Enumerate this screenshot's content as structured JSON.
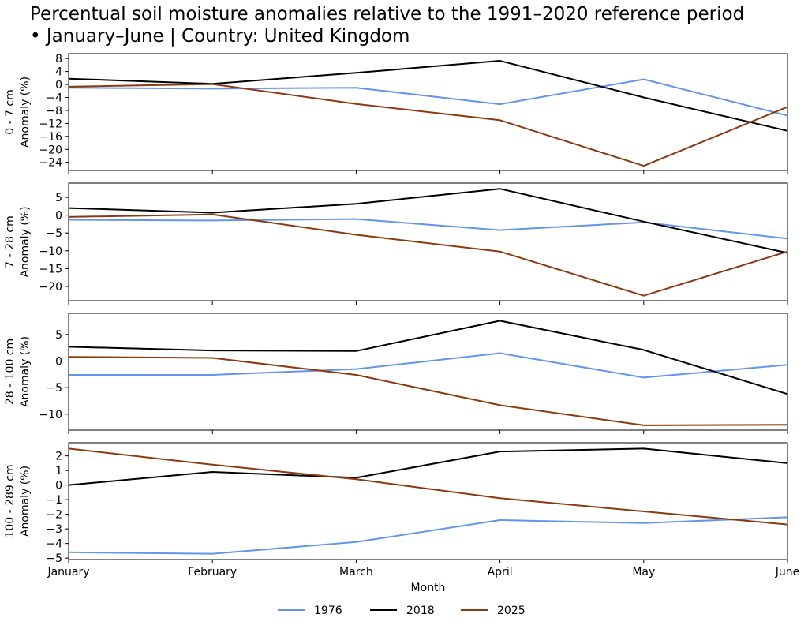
{
  "chart_data": {
    "type": "line",
    "title": "Percentual soil moisture anomalies relative to the 1991–2020 reference period\n• January–June | Country: United Kingdom",
    "xlabel": "Month",
    "categories": [
      "January",
      "February",
      "March",
      "April",
      "May",
      "June"
    ],
    "legend_position": "bottom-center",
    "legend": [
      "1976",
      "2018",
      "2025"
    ],
    "colors": {
      "1976": "#6495ED",
      "2018": "#000000",
      "2025": "#8B3A0F"
    },
    "grid": false,
    "panels": [
      {
        "ylabel": "0 - 7 cm\nAnomaly (%)",
        "ylim": [
          -26.5,
          9.5
        ],
        "yticks": [
          8,
          4,
          0,
          -4,
          -8,
          -12,
          -16,
          -20,
          -24
        ],
        "series": [
          {
            "name": "1976",
            "values": [
              -1.0,
              -1.3,
              -1.0,
              -6.1,
              1.6,
              -9.6
            ]
          },
          {
            "name": "2018",
            "values": [
              1.8,
              0.2,
              3.6,
              7.3,
              -4.0,
              -14.3
            ]
          },
          {
            "name": "2025",
            "values": [
              -0.7,
              0.1,
              -6.0,
              -11.0,
              -25.1,
              -6.9
            ]
          }
        ]
      },
      {
        "ylabel": "7 - 28 cm\nAnomaly (%)",
        "ylim": [
          -24,
          9
        ],
        "yticks": [
          5,
          0,
          -5,
          -10,
          -15,
          -20
        ],
        "series": [
          {
            "name": "1976",
            "values": [
              -1.3,
              -1.5,
              -1.1,
              -4.2,
              -2.0,
              -6.6
            ]
          },
          {
            "name": "2018",
            "values": [
              2.0,
              0.7,
              3.2,
              7.4,
              -1.8,
              -10.6
            ]
          },
          {
            "name": "2025",
            "values": [
              -0.5,
              0.2,
              -5.5,
              -10.2,
              -22.6,
              -10.2
            ]
          }
        ]
      },
      {
        "ylabel": "28 - 100 cm\nAnomaly (%)",
        "ylim": [
          -13,
          9
        ],
        "yticks": [
          5,
          0,
          -5,
          -10
        ],
        "series": [
          {
            "name": "1976",
            "values": [
              -2.6,
              -2.6,
              -1.5,
              1.5,
              -3.1,
              -0.7
            ]
          },
          {
            "name": "2018",
            "values": [
              2.7,
              2.0,
              1.9,
              7.6,
              2.1,
              -6.2
            ]
          },
          {
            "name": "2025",
            "values": [
              0.8,
              0.6,
              -2.6,
              -8.3,
              -12.1,
              -12.0
            ]
          }
        ]
      },
      {
        "ylabel": "100 - 289 cm\nAnomaly (%)",
        "ylim": [
          -5.1,
          2.9
        ],
        "yticks": [
          2,
          1,
          0,
          -1,
          -2,
          -3,
          -4,
          -5
        ],
        "series": [
          {
            "name": "1976",
            "values": [
              -4.6,
              -4.7,
              -3.9,
              -2.4,
              -2.6,
              -2.2
            ]
          },
          {
            "name": "2018",
            "values": [
              0.0,
              0.9,
              0.5,
              2.3,
              2.5,
              1.5
            ]
          },
          {
            "name": "2025",
            "values": [
              2.5,
              1.4,
              0.4,
              -0.9,
              -1.8,
              -2.7
            ]
          }
        ]
      }
    ]
  }
}
